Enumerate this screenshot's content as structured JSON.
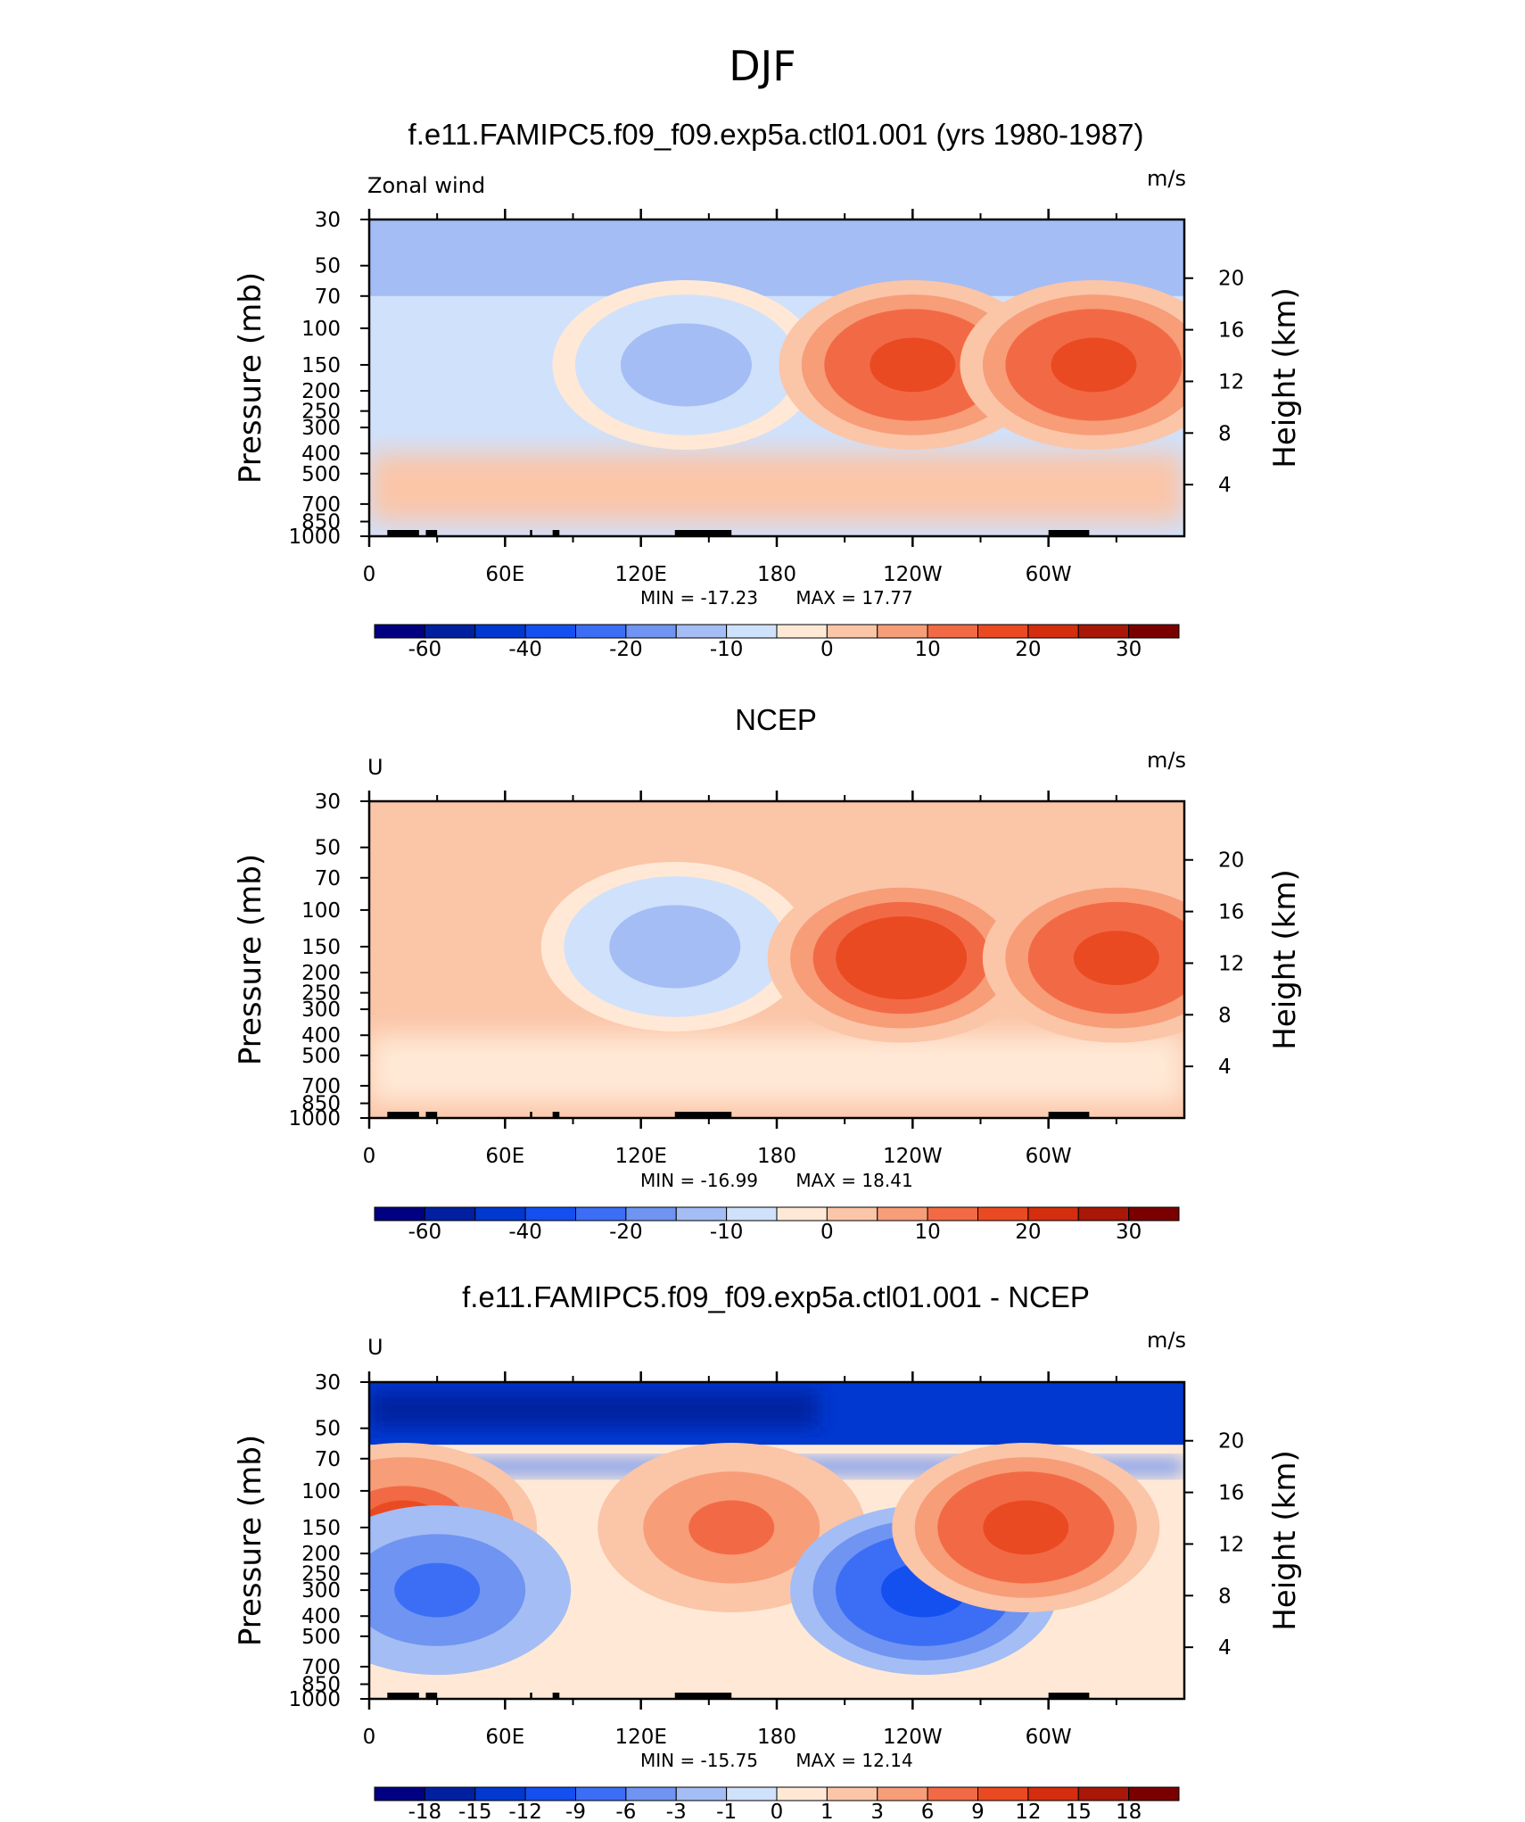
{
  "figure_title": "DJF",
  "colors": {
    "full_field": [
      "#000080",
      "#0020a0",
      "#0038d0",
      "#1450f0",
      "#3c6ef5",
      "#6f94f2",
      "#a4bdf4",
      "#d0e1fb",
      "#ffe9d6",
      "#fbc5a8",
      "#f79d78",
      "#f26a45",
      "#ea4a22",
      "#d42e0f",
      "#a81707",
      "#7a0000"
    ],
    "difference": [
      "#000080",
      "#0020a0",
      "#0038d0",
      "#1450f0",
      "#3c6ef5",
      "#6f94f2",
      "#a4bdf4",
      "#d0e1fb",
      "#ffe9d6",
      "#fbc5a8",
      "#f79d78",
      "#f26a45",
      "#ea4a22",
      "#d42e0f",
      "#a81707",
      "#7a0000"
    ],
    "topography": "#000000"
  },
  "chart_data": [
    {
      "type": "heatmap",
      "title": "f.e11.FAMIPC5.f09_f09.exp5a.ctl01.001 (yrs 1980-1987)",
      "variable_label": "Zonal wind",
      "units": "m/s",
      "ylabel": "Pressure (mb)",
      "ylabel_right": "Height (km)",
      "x_ticks": [
        "0",
        "60E",
        "120E",
        "180",
        "120W",
        "60W"
      ],
      "y_ticks": [
        "30",
        "50",
        "70",
        "100",
        "150",
        "200",
        "250",
        "300",
        "400",
        "500",
        "700",
        "850",
        "1000"
      ],
      "height_ticks": [
        "20",
        "16",
        "12",
        "8",
        "4"
      ],
      "min_text": "MIN = -17.23",
      "max_text": "MAX = 17.77",
      "min": -17.23,
      "max": 17.77,
      "colorbar_levels": [
        -70,
        -60,
        -50,
        -40,
        -30,
        -20,
        -15,
        -10,
        -5,
        0,
        5,
        10,
        15,
        20,
        25,
        30
      ],
      "colorbar_labels": [
        "-60",
        "-40",
        "-20",
        "-10",
        "0",
        "10",
        "20",
        "30"
      ],
      "features": [
        {
          "lon": 140,
          "p": 150,
          "value": -12
        },
        {
          "lon": 240,
          "p": 150,
          "value": 17
        },
        {
          "lon": 320,
          "p": 150,
          "value": 15
        }
      ]
    },
    {
      "type": "heatmap",
      "title": "NCEP",
      "variable_label": "U",
      "units": "m/s",
      "ylabel": "Pressure (mb)",
      "ylabel_right": "Height (km)",
      "x_ticks": [
        "0",
        "60E",
        "120E",
        "180",
        "120W",
        "60W"
      ],
      "y_ticks": [
        "30",
        "50",
        "70",
        "100",
        "150",
        "200",
        "250",
        "300",
        "400",
        "500",
        "700",
        "850",
        "1000"
      ],
      "height_ticks": [
        "20",
        "16",
        "12",
        "8",
        "4"
      ],
      "min_text": "MIN = -16.99",
      "max_text": "MAX = 18.41",
      "min": -16.99,
      "max": 18.41,
      "colorbar_levels": [
        -70,
        -60,
        -50,
        -40,
        -30,
        -20,
        -15,
        -10,
        -5,
        0,
        5,
        10,
        15,
        20,
        25,
        30
      ],
      "colorbar_labels": [
        "-60",
        "-40",
        "-20",
        "-10",
        "0",
        "10",
        "20",
        "30"
      ],
      "features": [
        {
          "lon": 135,
          "p": 150,
          "value": -12
        },
        {
          "lon": 235,
          "p": 170,
          "value": 18
        },
        {
          "lon": 330,
          "p": 170,
          "value": 16
        }
      ]
    },
    {
      "type": "heatmap",
      "title": "f.e11.FAMIPC5.f09_f09.exp5a.ctl01.001 - NCEP",
      "variable_label": "U",
      "units": "m/s",
      "ylabel": "Pressure (mb)",
      "ylabel_right": "Height (km)",
      "x_ticks": [
        "0",
        "60E",
        "120E",
        "180",
        "120W",
        "60W"
      ],
      "y_ticks": [
        "30",
        "50",
        "70",
        "100",
        "150",
        "200",
        "250",
        "300",
        "400",
        "500",
        "700",
        "850",
        "1000"
      ],
      "height_ticks": [
        "20",
        "16",
        "12",
        "8",
        "4"
      ],
      "min_text": "MIN = -15.75",
      "max_text": "MAX = 12.14",
      "min": -15.75,
      "max": 12.14,
      "colorbar_levels": [
        -21,
        -18,
        -15,
        -12,
        -9,
        -6,
        -3,
        -1,
        0,
        1,
        3,
        6,
        9,
        12,
        15,
        18
      ],
      "colorbar_labels": [
        "-18",
        "-15",
        "-12",
        "-9",
        "-6",
        "-3",
        "-1",
        "0",
        "1",
        "3",
        "6",
        "9",
        "12",
        "15",
        "18"
      ],
      "features": [
        {
          "lon": 15,
          "p": 150,
          "value": 9
        },
        {
          "lon": 160,
          "p": 150,
          "value": 6
        },
        {
          "lon": 245,
          "p": 300,
          "value": -10
        },
        {
          "lon": 290,
          "p": 150,
          "value": 10
        },
        {
          "lon": 30,
          "p": 300,
          "value": -6
        }
      ]
    }
  ]
}
